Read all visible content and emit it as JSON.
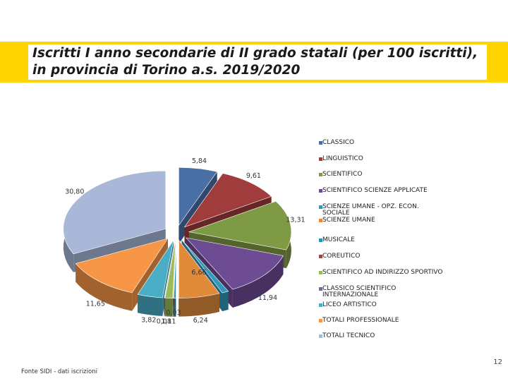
{
  "page": {
    "title": "Iscritti I anno secondarie di II grado statali (per 100 iscritti), in provincia di Torino  a.s. 2019/2020",
    "source": "Fonte SIDI - dati iscrizioni",
    "page_number": "12"
  },
  "colors": {
    "title_band": "#ffd400"
  },
  "chart_data": {
    "type": "pie",
    "style": "3d-exploded",
    "legend_position": "right",
    "slices": [
      {
        "name": "CLASSICO",
        "value": 5.84,
        "label": "5,84",
        "color": "#4a6fa5"
      },
      {
        "name": "LINGUISTICO",
        "value": 9.61,
        "label": "9,61",
        "color": "#a03c3c"
      },
      {
        "name": "SCIENTIFICO",
        "value": 13.31,
        "label": "13,31",
        "color": "#7f9a44"
      },
      {
        "name": "SCIENTIFICO SCIENZE APPLICATE",
        "value": 11.94,
        "label": "11,94",
        "color": "#6e4c94"
      },
      {
        "name": "SCIENZE UMANE  - OPZ. ECON. SOCIALE",
        "value": 1.0,
        "label": "",
        "color": "#3399bb"
      },
      {
        "name": "SCIENZE UMANE",
        "value": 6.24,
        "label": "6,24",
        "color": "#e08a3a"
      },
      {
        "name": "MUSICALE",
        "value": 0.3,
        "label": "",
        "color": "#2a8fb0"
      },
      {
        "name": "COREUTICO",
        "value": 0.1,
        "label": "",
        "color": "#b04040"
      },
      {
        "name": "SCIENTIFICO  AD INDIRIZZO SPORTIVO",
        "value": 1.11,
        "label": "1,11",
        "color": "#9bbb59"
      },
      {
        "name": "CLASSICO SCIENTIFICO INTERNAZIONALE",
        "value": 0.08,
        "label": "0,08",
        "color": "#8064a2"
      },
      {
        "name": "LICEO  ARTISTICO",
        "value": 3.82,
        "label": "3,82",
        "color": "#4bacc6"
      },
      {
        "name": "TOTALI PROFESSIONALE",
        "value": 11.65,
        "label": "11,65",
        "color": "#f79646"
      },
      {
        "name": "TOTALI TECNICO",
        "value": 30.8,
        "label": "30,80",
        "color": "#a9b8d8"
      }
    ],
    "extra_labels": [
      "6,66",
      "0,03"
    ]
  }
}
